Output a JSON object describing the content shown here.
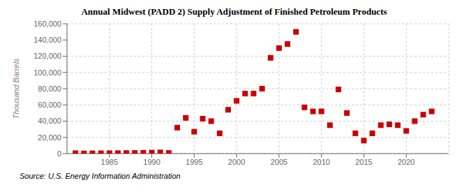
{
  "chart_data": {
    "type": "scatter",
    "title": "Annual Midwest (PADD 2) Supply Adjustment of Finished Petroleum Products",
    "ylabel": "Thousand Barrels",
    "annotations": [
      "Source: U.S. Energy Information Administration"
    ],
    "x": [
      1981,
      1982,
      1983,
      1984,
      1985,
      1986,
      1987,
      1988,
      1989,
      1990,
      1991,
      1992,
      1993,
      1994,
      1995,
      1996,
      1997,
      1998,
      1999,
      2000,
      2001,
      2002,
      2003,
      2004,
      2005,
      2006,
      2007,
      2008,
      2009,
      2010,
      2011,
      2012,
      2013,
      2014,
      2015,
      2016,
      2017,
      2018,
      2019,
      2020,
      2021,
      2022,
      2023
    ],
    "values": [
      500,
      200,
      300,
      400,
      500,
      600,
      700,
      800,
      1000,
      1200,
      1500,
      800,
      32000,
      44000,
      27000,
      43000,
      40000,
      25000,
      54000,
      65000,
      74000,
      74000,
      80000,
      118000,
      130000,
      135000,
      150000,
      57000,
      52000,
      52000,
      35000,
      79000,
      50000,
      25000,
      16000,
      25000,
      35000,
      36000,
      35000,
      28000,
      40000,
      48000,
      52000
    ],
    "color": "#cc0000",
    "marker": "square",
    "xlim": [
      1980,
      2025
    ],
    "xticks": [
      1985,
      1990,
      1995,
      2000,
      2005,
      2010,
      2015,
      2020
    ],
    "ylim": [
      0,
      160000
    ],
    "yticks": [
      0,
      {
        "value": 20000,
        "label": "20,000"
      },
      {
        "value": 40000,
        "label": "40,000"
      },
      {
        "value": 60000,
        "label": "60,000"
      },
      {
        "value": 80000,
        "label": "80,000"
      },
      {
        "value": 100000,
        "label": "100,000"
      },
      {
        "value": 120000,
        "label": "120,000"
      },
      {
        "value": 140000,
        "label": "140,000"
      },
      {
        "value": 160000,
        "label": "160,000"
      }
    ],
    "grid": true
  }
}
